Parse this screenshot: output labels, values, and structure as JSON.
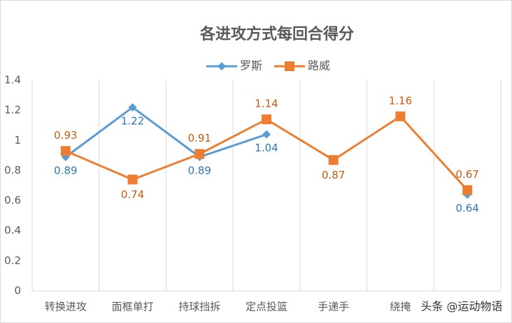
{
  "chart_data": {
    "type": "line",
    "title": "各进攻方式每回合得分",
    "categories": [
      "转换进攻",
      "面框单打",
      "持球挡拆",
      "定点投篮",
      "手递手",
      "绕掩",
      null
    ],
    "series": [
      {
        "name": "罗斯",
        "color": "#5b9bd5",
        "marker": "diamond",
        "values": [
          0.89,
          1.22,
          0.89,
          1.04,
          null,
          null,
          0.64
        ]
      },
      {
        "name": "路威",
        "color": "#ed7d31",
        "marker": "square",
        "values": [
          0.93,
          0.74,
          0.91,
          1.14,
          0.87,
          1.16,
          0.67
        ]
      }
    ],
    "ylim": [
      0,
      1.4
    ],
    "yticks": [
      0,
      0.2,
      0.4,
      0.6,
      0.8,
      1,
      1.2,
      1.4
    ],
    "grid": true,
    "legend": "top",
    "watermark": "头条 @运动物语"
  }
}
